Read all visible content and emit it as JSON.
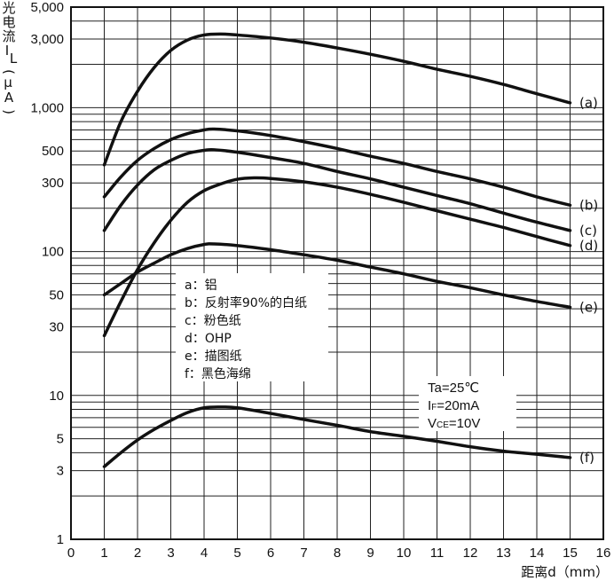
{
  "chart_data": {
    "type": "line",
    "ylabel_chars": [
      "光",
      "电",
      "流",
      "I",
      "L",
      "(",
      "μ",
      "A",
      ")"
    ],
    "xlabel": "距离d（mm）",
    "x_scale": "linear",
    "y_scale": "log",
    "xlim": [
      0,
      16
    ],
    "ylim": [
      1,
      5000
    ],
    "grid": true,
    "x_ticks": [
      0,
      1,
      2,
      3,
      4,
      5,
      6,
      7,
      8,
      9,
      10,
      11,
      12,
      13,
      14,
      15,
      16
    ],
    "x_tick_labels": [
      "0",
      "1",
      "2",
      "3",
      "4",
      "5",
      "6",
      "7",
      "8",
      "9",
      "10",
      "11",
      "12",
      "13",
      "14",
      "15",
      "16"
    ],
    "y_ticks": [
      1,
      3,
      5,
      10,
      30,
      50,
      100,
      300,
      500,
      1000,
      3000,
      5000
    ],
    "y_tick_labels": [
      "1",
      "3",
      "5",
      "10",
      "30",
      "50",
      "100",
      "300",
      "500",
      "1,000",
      "3,000",
      "5,000"
    ],
    "series": [
      {
        "name": "(a)",
        "x": [
          1,
          1.5,
          2,
          2.5,
          3,
          3.5,
          4,
          4.5,
          5,
          6,
          7,
          8,
          9,
          10,
          11,
          12,
          13,
          14,
          15
        ],
        "y": [
          400,
          800,
          1300,
          1900,
          2500,
          2950,
          3200,
          3250,
          3200,
          3050,
          2850,
          2600,
          2350,
          2100,
          1850,
          1650,
          1450,
          1250,
          1080
        ]
      },
      {
        "name": "(b)",
        "x": [
          1,
          1.5,
          2,
          2.5,
          3,
          3.5,
          4,
          4.3,
          5,
          6,
          7,
          8,
          9,
          10,
          11,
          12,
          13,
          14,
          15
        ],
        "y": [
          240,
          330,
          430,
          520,
          600,
          660,
          700,
          710,
          690,
          640,
          580,
          520,
          460,
          410,
          360,
          320,
          280,
          240,
          210
        ]
      },
      {
        "name": "(c)",
        "x": [
          1,
          1.5,
          2,
          2.5,
          3,
          3.5,
          4,
          4.3,
          5,
          6,
          7,
          8,
          9,
          10,
          11,
          12,
          13,
          14,
          15
        ],
        "y": [
          140,
          210,
          290,
          370,
          430,
          480,
          505,
          510,
          490,
          450,
          410,
          360,
          320,
          280,
          245,
          215,
          185,
          160,
          140
        ]
      },
      {
        "name": "(d)",
        "x": [
          1,
          1.5,
          2,
          2.5,
          3,
          3.5,
          4,
          4.5,
          5,
          5.5,
          6,
          7,
          8,
          9,
          10,
          11,
          12,
          13,
          14,
          15
        ],
        "y": [
          26,
          45,
          75,
          115,
          165,
          220,
          265,
          295,
          318,
          325,
          322,
          305,
          280,
          250,
          220,
          192,
          168,
          147,
          127,
          110
        ]
      },
      {
        "name": "(e)",
        "x": [
          1,
          1.5,
          2,
          2.5,
          3,
          3.5,
          4,
          4.3,
          5,
          6,
          7,
          8,
          9,
          10,
          11,
          12,
          13,
          14,
          15
        ],
        "y": [
          50,
          60,
          72,
          83,
          95,
          105,
          112,
          113,
          110,
          103,
          95,
          87,
          78,
          70,
          62,
          56,
          50,
          45,
          41
        ]
      },
      {
        "name": "(f)",
        "x": [
          1,
          1.5,
          2,
          2.5,
          3,
          3.5,
          4,
          4.5,
          5,
          6,
          7,
          8,
          9,
          10,
          11,
          12,
          13,
          14,
          15
        ],
        "y": [
          3.2,
          4.0,
          4.9,
          5.8,
          6.7,
          7.6,
          8.2,
          8.3,
          8.2,
          7.5,
          6.8,
          6.2,
          5.6,
          5.2,
          4.8,
          4.4,
          4.1,
          3.9,
          3.7
        ]
      }
    ],
    "legend": {
      "placement": "center-left",
      "items": [
        {
          "key": "a",
          "label": "铝"
        },
        {
          "key": "b",
          "label": "反射率90%的白纸"
        },
        {
          "key": "c",
          "label": "粉色纸"
        },
        {
          "key": "d",
          "label": "OHP"
        },
        {
          "key": "e",
          "label": "描图纸"
        },
        {
          "key": "f",
          "label": "黑色海绵"
        }
      ]
    },
    "conditions": [
      {
        "main": "Ta",
        "sub": "",
        "value": "=25℃"
      },
      {
        "main": "I",
        "sub": "F",
        "value": "=20mA"
      },
      {
        "main": "V",
        "sub": "CE",
        "value": "=10V"
      }
    ]
  }
}
